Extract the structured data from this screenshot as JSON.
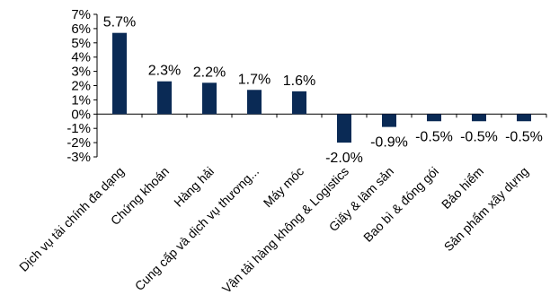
{
  "chart_data": {
    "type": "bar",
    "categories": [
      "Dịch vụ tài chính đa dạng",
      "Chứng khoán",
      "Hàng hải",
      "Cung cấp và dịch vụ thương...",
      "Máy móc",
      "Vận tải hàng không & Logistics",
      "Giấy & lâm sản",
      "Bao bì & đóng gói",
      "Bảo hiểm",
      "Sản phẩm xây dựng"
    ],
    "values": [
      5.7,
      2.3,
      2.2,
      1.7,
      1.6,
      -2.0,
      -0.9,
      -0.5,
      -0.5,
      -0.5
    ],
    "data_labels": [
      "5.7%",
      "2.3%",
      "2.2%",
      "1.7%",
      "1.6%",
      "-2.0%",
      "-0.9%",
      "-0.5%",
      "-0.5%",
      "-0.5%"
    ],
    "y_ticks": [
      7,
      6,
      5,
      4,
      3,
      2,
      1,
      0,
      -1,
      -2,
      -3
    ],
    "y_tick_labels": [
      "7%",
      "6%",
      "5%",
      "4%",
      "3%",
      "2%",
      "1%",
      "0%",
      "-1%",
      "-2%",
      "-3%"
    ],
    "ylim": [
      -3,
      7
    ],
    "grid": false,
    "bar_color": "#0a2a55"
  }
}
